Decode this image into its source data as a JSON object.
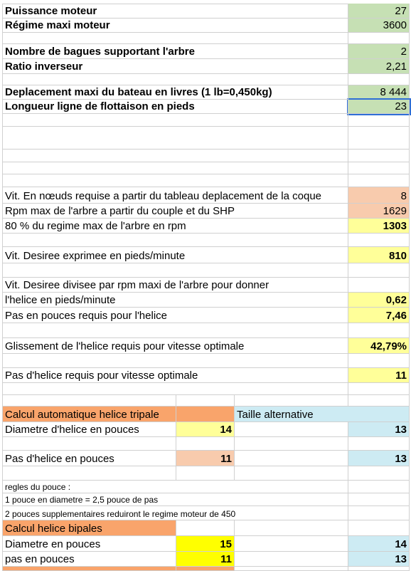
{
  "inputs": [
    {
      "label": "Puissance moteur",
      "value": 27
    },
    {
      "label": "Régime maxi moteur",
      "value": 3600
    },
    {
      "label": "Nombre de bagues supportant l'arbre",
      "value": 2
    },
    {
      "label": "Ratio inverseur",
      "value": "2,21"
    },
    {
      "label": "Deplacement maxi du bateau en livres (1 lb=0,450kg)",
      "value": "8 444"
    },
    {
      "label": "Longueur ligne de flottaison en pieds",
      "value": 23
    }
  ],
  "calculations": [
    {
      "label": "Vit. En nœuds requise a partir du tableau deplacement de la coque",
      "value": 8
    },
    {
      "label": "Rpm max de l'arbre a partir du couple et du SHP",
      "value": 1629
    },
    {
      "label": "80 % du regime max de l'arbre en rpm",
      "value": 1303
    },
    {
      "label": "Vit. Desiree exprimee en pieds/minute",
      "value": 810
    },
    {
      "label": "Vit. Desiree divisee par rpm maxi de l'arbre pour donner"
    },
    {
      "label": "l'helice en pieds/minute",
      "value": "0,62"
    },
    {
      "label": "Pas en pouces requis pour l'helice",
      "value": "7,46"
    },
    {
      "label": "Glissement de l'helice requis pour vitesse optimale",
      "value": "42,79%"
    },
    {
      "label": "Pas d'helice requis pour vitesse optimale",
      "value": 11
    }
  ],
  "tripale": {
    "title": "Calcul automatique helice tripale",
    "alt_title": "Taille alternative",
    "rows": [
      {
        "label": "Diametre d'helice en pouces",
        "value": 14,
        "alternative": 13
      },
      {
        "label": "Pas d'helice en pouces",
        "value": 11,
        "alternative": 13
      }
    ]
  },
  "rules": {
    "title": "regles du pouce :",
    "lines": [
      "1 pouce en diametre = 2,5 pouce de pas",
      "2 pouces supplementaires reduiront le regime moteur de 450"
    ]
  },
  "bipales": {
    "title": "Calcul helice bipales",
    "rows": [
      {
        "label": "Diametre en pouces",
        "value": 15,
        "alternative": 14
      },
      {
        "label": "pas en pouces",
        "value": 11,
        "alternative": 13
      }
    ]
  }
}
